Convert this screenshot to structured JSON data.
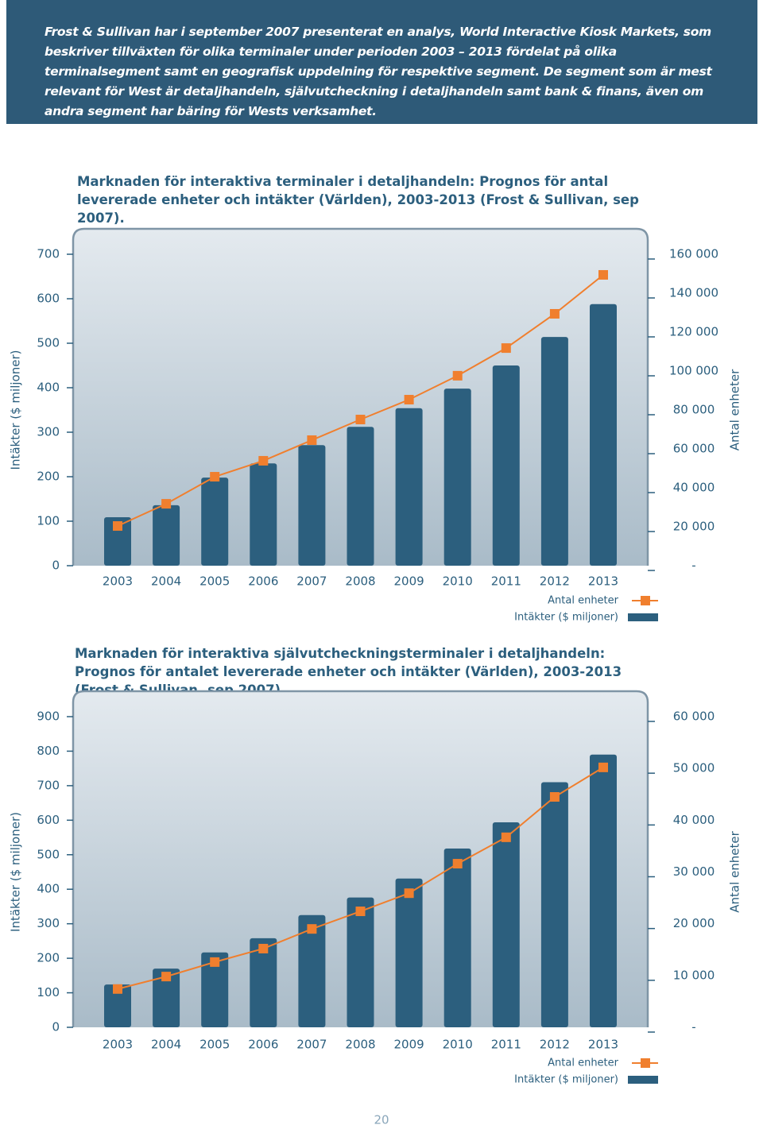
{
  "intro": "Frost & Sullivan har i september 2007 presenterat en analys, World Interactive Kiosk Markets, som beskriver tillväxten för olika terminaler under perioden 2003 – 2013 fördelat på olika terminalsegment samt en geografisk uppdelning för respektive segment. De segment som är mest relevant för West är detaljhandeln, självutcheckning i detaljhandeln samt bank & finans, även om andra segment har bäring för Wests verksamhet.",
  "page_number": "20",
  "chart_data": [
    {
      "type": "combo",
      "title": "Marknaden för interaktiva terminaler i detaljhandeln: Prognos för antal levererade enheter och intäkter (Världen), 2003-2013 (Frost & Sullivan, sep 2007).",
      "y_label": "Intäkter ($ miljoner)",
      "y2_label": "Antal enheter",
      "categories": [
        "2003",
        "2004",
        "2005",
        "2006",
        "2007",
        "2008",
        "2009",
        "2010",
        "2011",
        "2012",
        "2013"
      ],
      "series": [
        {
          "name": "Antal enheter",
          "type": "line",
          "axis": "y2",
          "color": "#f07f2e",
          "values": [
            20400,
            31800,
            45700,
            53900,
            64500,
            75100,
            85300,
            97600,
            111800,
            129400,
            149400
          ]
        },
        {
          "name": "Intäkter ($ miljoner)",
          "type": "bar",
          "color": "#2c5f7e",
          "values": [
            109,
            136,
            198,
            230,
            271,
            312,
            354,
            398,
            450,
            514,
            588
          ]
        }
      ],
      "ylim": [
        0,
        700
      ],
      "yticks": [
        0,
        100,
        200,
        300,
        400,
        500,
        600,
        700
      ],
      "y2lim": [
        0,
        160000
      ],
      "y2ticks": [
        {
          "value": 0,
          "label": "-"
        },
        {
          "value": 20000,
          "label": "20 000"
        },
        {
          "value": 40000,
          "label": "40 000"
        },
        {
          "value": 60000,
          "label": "60 000"
        },
        {
          "value": 80000,
          "label": "80 000"
        },
        {
          "value": 100000,
          "label": "100 000"
        },
        {
          "value": 120000,
          "label": "120 000"
        },
        {
          "value": 140000,
          "label": "140 000"
        },
        {
          "value": 160000,
          "label": "160 000"
        }
      ]
    },
    {
      "type": "combo",
      "title": "Marknaden för interaktiva självutcheckningsterminaler i detaljhandeln: Prognos för antalet levererade enheter och intäkter (Världen), 2003-2013 (Frost & Sullivan, sep 2007).",
      "y_label": "Intäkter ($ miljoner)",
      "y2_label": "Antal enheter",
      "categories": [
        "2003",
        "2004",
        "2005",
        "2006",
        "2007",
        "2008",
        "2009",
        "2010",
        "2011",
        "2012",
        "2013"
      ],
      "series": [
        {
          "name": "Antal enheter",
          "type": "line",
          "axis": "y2",
          "color": "#f07f2e",
          "values": [
            7400,
            9800,
            12600,
            15200,
            19000,
            22400,
            25900,
            31600,
            36700,
            44500,
            50200
          ]
        },
        {
          "name": "Intäkter ($ miljoner)",
          "type": "bar",
          "color": "#2c5f7e",
          "values": [
            124,
            170,
            217,
            258,
            325,
            376,
            431,
            518,
            594,
            710,
            790
          ]
        }
      ],
      "ylim": [
        0,
        900
      ],
      "yticks": [
        0,
        100,
        200,
        300,
        400,
        500,
        600,
        700,
        800,
        900
      ],
      "y2lim": [
        0,
        60000
      ],
      "y2ticks": [
        {
          "value": 0,
          "label": "-"
        },
        {
          "value": 10000,
          "label": "10 000"
        },
        {
          "value": 20000,
          "label": "20 000"
        },
        {
          "value": 30000,
          "label": "30 000"
        },
        {
          "value": 40000,
          "label": "40 000"
        },
        {
          "value": 50000,
          "label": "50 000"
        },
        {
          "value": 60000,
          "label": "60 000"
        }
      ]
    }
  ]
}
